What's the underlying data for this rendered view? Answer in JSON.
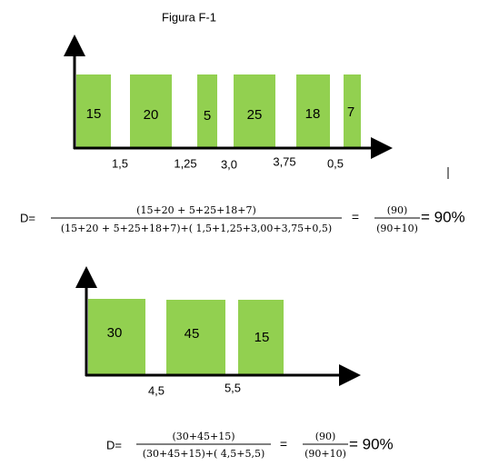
{
  "title": "Figura F-1",
  "figure_1": {
    "bars": [
      "15",
      "20",
      "5",
      "25",
      "18",
      "7"
    ],
    "gaps": [
      "1,5",
      "1,25",
      "3,0",
      "3,75",
      "0,5"
    ]
  },
  "formula_1": {
    "lhs": "D=",
    "numerator": "(15+20 + 5+25+18+7)",
    "denominator": "(15+20 + 5+25+18+7)+( 1,5+1,25+3,00+3,75+0,5)",
    "equals": "=",
    "numerator_2": "(90)",
    "denominator_2": "(90+10)",
    "result": "= 90%"
  },
  "figure_2": {
    "bars": [
      "30",
      "45",
      "15"
    ],
    "gaps": [
      "4,5",
      "5,5"
    ]
  },
  "formula_2": {
    "lhs": "D=",
    "numerator": "(30+45+15)",
    "denominator": "(30+45+15)+( 4,5+5,5)",
    "equals": "=",
    "numerator_2": "(90)",
    "denominator_2": "(90+10)",
    "result": "= 90%"
  }
}
